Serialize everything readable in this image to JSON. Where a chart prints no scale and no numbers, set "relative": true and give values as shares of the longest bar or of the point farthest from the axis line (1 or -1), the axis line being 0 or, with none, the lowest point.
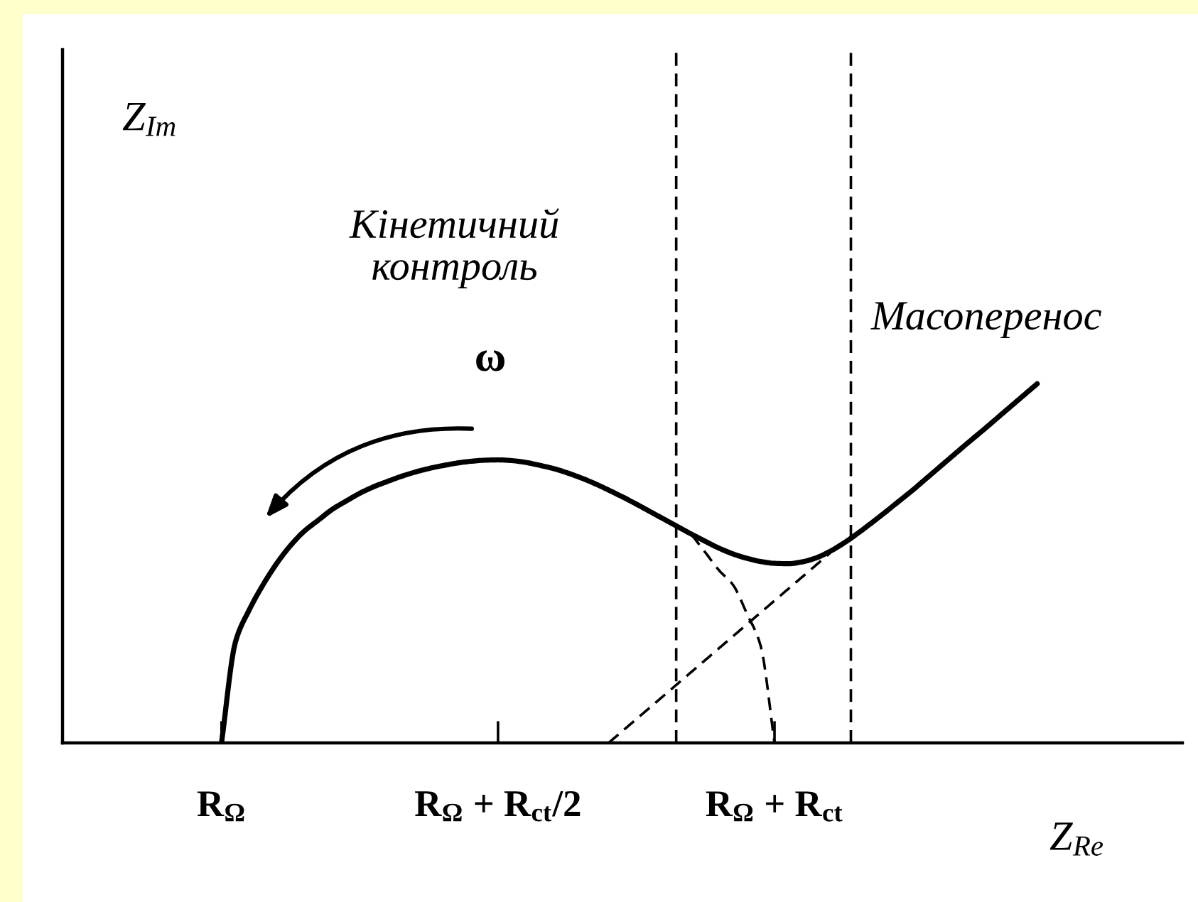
{
  "chart_data": {
    "type": "line",
    "relative": true,
    "xlabel": "Z$_{Re}$",
    "categories": [
      null,
      null,
      null,
      null,
      null,
      null,
      null,
      null,
      null,
      null,
      null,
      "R$_{Ω}$",
      null,
      null,
      null,
      null,
      null,
      null,
      null,
      null,
      null,
      null,
      null,
      null,
      null,
      null,
      null,
      null,
      null,
      null,
      null,
      "R$_{Ω}$ + R$_{ct}$/2",
      null,
      null,
      null,
      null,
      null,
      null,
      null,
      null,
      null,
      null,
      null,
      null,
      null,
      null,
      null,
      null,
      null,
      null,
      null,
      "R$_{Ω}$ + R$_{ct}$",
      null,
      null,
      null,
      null,
      null,
      null,
      null,
      null,
      null,
      null,
      null,
      null,
      null,
      null,
      null,
      null,
      null,
      null,
      null,
      null,
      null,
      null,
      null,
      null,
      null,
      null,
      null,
      null,
      null
    ],
    "tick_labels": "x",
    "series": [
      {
        "color": "#000000",
        "line_style": "solid",
        "values": [
          null,
          null,
          null,
          null,
          null,
          null,
          null,
          null,
          null,
          null,
          null,
          0,
          0.28,
          0.37,
          0.44,
          0.5,
          0.55,
          0.59,
          0.62,
          0.65,
          0.673,
          0.695,
          0.713,
          0.728,
          0.742,
          0.754,
          0.764,
          0.772,
          0.779,
          0.784,
          0.787,
          0.788,
          0.786,
          0.781,
          0.773,
          0.764,
          0.752,
          0.738,
          0.722,
          0.704,
          0.685,
          0.665,
          0.644,
          0.623,
          0.602,
          0.581,
          0.561,
          0.542,
          0.526,
          0.514,
          0.505,
          0.5,
          0.499,
          0.504,
          0.515,
          0.533,
          0.556,
          0.583,
          0.612,
          0.642,
          0.673,
          0.704,
          0.737,
          0.77,
          0.803,
          0.836,
          0.868,
          0.901,
          0.934,
          0.967,
          1.0,
          null,
          null,
          null,
          null,
          null,
          null,
          null,
          null,
          null,
          null
        ]
      },
      {
        "color": "#000000",
        "line_style": "dashed",
        "values": [
          null,
          null,
          null,
          null,
          null,
          null,
          null,
          null,
          null,
          null,
          null,
          null,
          null,
          null,
          null,
          null,
          null,
          null,
          null,
          null,
          null,
          null,
          null,
          null,
          null,
          null,
          null,
          null,
          null,
          null,
          null,
          null,
          null,
          null,
          null,
          null,
          null,
          null,
          null,
          null,
          null,
          null,
          null,
          null,
          null,
          0.58,
          0.53,
          0.48,
          0.44,
          0.36,
          0.27,
          0,
          null,
          null,
          null,
          null,
          null,
          null,
          null,
          null,
          null,
          null,
          null,
          null,
          null,
          null,
          null,
          null,
          null,
          null,
          null,
          null,
          null,
          null,
          null,
          null,
          null,
          null,
          null,
          null,
          null
        ]
      },
      {
        "color": "#000000",
        "line_style": "dashed",
        "values": [
          null,
          null,
          null,
          null,
          null,
          null,
          null,
          null,
          null,
          null,
          null,
          null,
          null,
          null,
          null,
          null,
          null,
          null,
          null,
          null,
          null,
          null,
          null,
          null,
          null,
          null,
          null,
          null,
          null,
          null,
          null,
          null,
          null,
          null,
          null,
          null,
          null,
          null,
          null,
          0,
          0.033,
          0.066,
          0.099,
          0.132,
          0.165,
          0.198,
          0.231,
          0.264,
          0.297,
          0.33,
          0.363,
          0.396,
          0.429,
          0.462,
          0.495,
          0.528,
          null,
          null,
          null,
          null,
          null,
          null,
          null,
          null,
          null,
          null,
          null,
          null,
          null,
          null,
          null,
          null,
          null,
          null,
          null,
          null,
          null,
          null,
          null,
          null,
          null
        ]
      }
    ],
    "annotations": [
      "Z$_{Im}$",
      "Кінетичний\nконтроль",
      "ω",
      "Масоперенос"
    ]
  }
}
